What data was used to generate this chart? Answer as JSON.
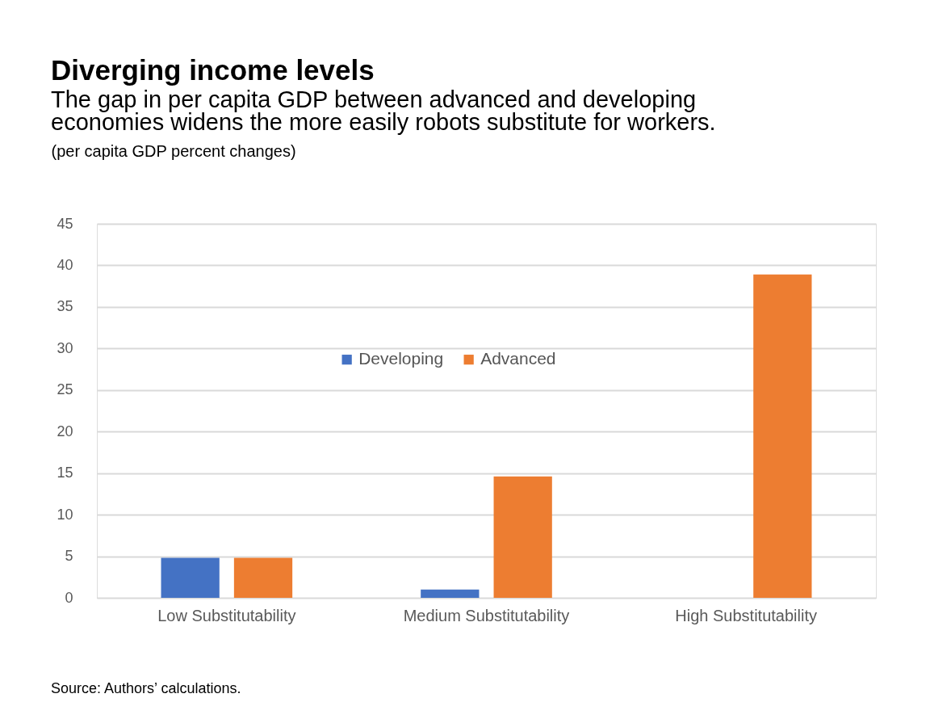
{
  "chart_data": {
    "type": "bar",
    "title": "Diverging income levels",
    "subtitle": "The gap in per capita GDP between advanced and developing economies widens the more easily robots substitute for workers.",
    "ylabel": "(per capita GDP percent changes)",
    "categories": [
      "Low Substitutability",
      "Medium Substitutability",
      "High Substitutability"
    ],
    "series": [
      {
        "name": "Developing",
        "color": "#4472c4",
        "values": [
          4.8,
          1.0,
          null
        ]
      },
      {
        "name": "Advanced",
        "color": "#ed7d31",
        "values": [
          4.8,
          14.6,
          38.9
        ]
      }
    ],
    "ylim": [
      0,
      45
    ],
    "yticks": [
      0,
      5,
      10,
      15,
      20,
      25,
      30,
      35,
      40,
      45
    ],
    "grid": "y",
    "legend": "center",
    "annotations": [
      "Source: Authors’ calculations."
    ]
  }
}
